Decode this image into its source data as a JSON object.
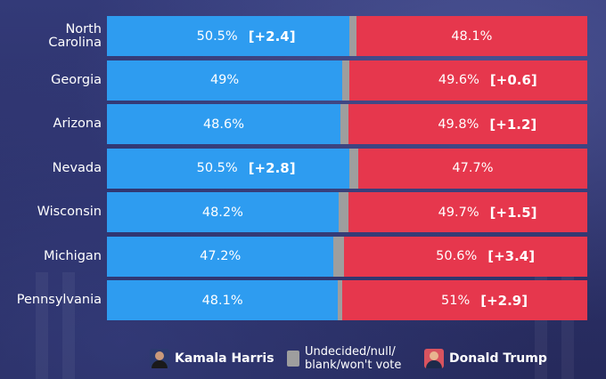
{
  "chart_data": {
    "type": "bar",
    "orientation": "horizontal",
    "stacked": true,
    "normalized": true,
    "categories": [
      "North Carolina",
      "Georgia",
      "Arizona",
      "Nevada",
      "Wisconsin",
      "Michigan",
      "Pennsylvania"
    ],
    "category_labels": [
      [
        "North",
        "Carolina"
      ],
      [
        "Georgia"
      ],
      [
        "Arizona"
      ],
      [
        "Nevada"
      ],
      [
        "Wisconsin"
      ],
      [
        "Michigan"
      ],
      [
        "Pennsylvania"
      ]
    ],
    "series": [
      {
        "name": "Kamala Harris",
        "color": "#2e9cf0",
        "values": [
          50.5,
          49,
          48.6,
          50.5,
          48.2,
          47.2,
          48.1
        ],
        "labels": [
          "50.5%",
          "49%",
          "48.6%",
          "50.5%",
          "48.2%",
          "47.2%",
          "48.1%"
        ]
      },
      {
        "name": "Undecided/null/blank/won't vote",
        "color": "#9e9e9e",
        "values": [
          1.4,
          1.4,
          1.6,
          1.8,
          2.1,
          2.2,
          0.9
        ]
      },
      {
        "name": "Donald Trump",
        "color": "#e6374d",
        "values": [
          48.1,
          49.6,
          49.8,
          47.7,
          49.7,
          50.6,
          51
        ],
        "labels": [
          "48.1%",
          "49.6%",
          "49.8%",
          "47.7%",
          "49.7%",
          "50.6%",
          "51%"
        ]
      }
    ],
    "margins": [
      {
        "side": "harris",
        "label": "[+2.4]"
      },
      {
        "side": "trump",
        "label": "[+0.6]"
      },
      {
        "side": "trump",
        "label": "[+1.2]"
      },
      {
        "side": "harris",
        "label": "[+2.8]"
      },
      {
        "side": "trump",
        "label": "[+1.5]"
      },
      {
        "side": "trump",
        "label": "[+3.4]"
      },
      {
        "side": "trump",
        "label": "[+2.9]"
      }
    ],
    "xlim": [
      0,
      100
    ],
    "grid": false,
    "legend_position": "bottom"
  },
  "legend": {
    "harris": {
      "label": "Kamala Harris",
      "icon": "harris-portrait-icon",
      "color": "#2e9cf0"
    },
    "undecided": {
      "label_line1": "Undecided/null/",
      "label_line2": "blank/won't vote",
      "color": "#9e9e9e"
    },
    "trump": {
      "label": "Donald Trump",
      "icon": "trump-portrait-icon",
      "color": "#e6374d"
    }
  }
}
